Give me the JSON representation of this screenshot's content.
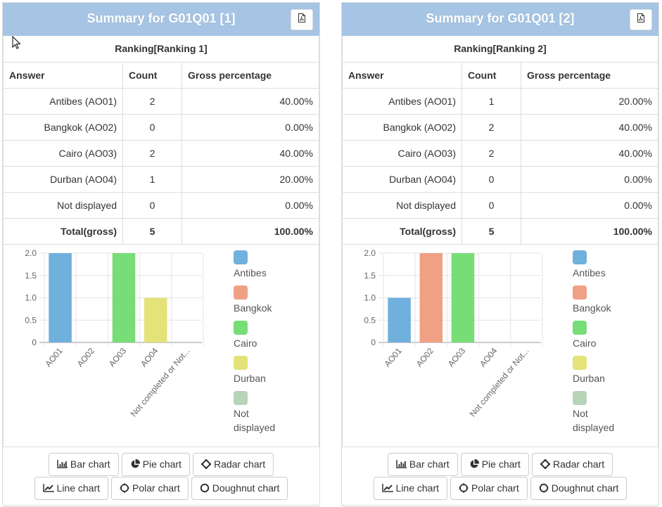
{
  "panels": [
    {
      "title": "Summary for G01Q01 [1]",
      "export_icon": "pdf-file-icon",
      "caption": "Ranking[Ranking 1]",
      "columns": [
        "Answer",
        "Count",
        "Gross percentage"
      ],
      "rows": [
        {
          "answer": "Antibes (AO01)",
          "count": "2",
          "pct": "40.00%"
        },
        {
          "answer": "Bangkok (AO02)",
          "count": "0",
          "pct": "0.00%"
        },
        {
          "answer": "Cairo (AO03)",
          "count": "2",
          "pct": "40.00%"
        },
        {
          "answer": "Durban (AO04)",
          "count": "1",
          "pct": "20.00%"
        },
        {
          "answer": "Not displayed",
          "count": "0",
          "pct": "0.00%"
        }
      ],
      "total": {
        "answer": "Total(gross)",
        "count": "5",
        "pct": "100.00%"
      },
      "legend": [
        "Antibes",
        "Bangkok",
        "Cairo",
        "Durban",
        "Not displayed"
      ],
      "buttons_row1": [
        {
          "label": "Bar chart",
          "icon": "bar-chart-icon"
        },
        {
          "label": "Pie chart",
          "icon": "pie-chart-icon"
        },
        {
          "label": "Radar chart",
          "icon": "radar-chart-icon"
        }
      ],
      "buttons_row2": [
        {
          "label": "Line chart",
          "icon": "line-chart-icon"
        },
        {
          "label": "Polar chart",
          "icon": "polar-chart-icon"
        },
        {
          "label": "Doughnut chart",
          "icon": "doughnut-chart-icon"
        }
      ]
    },
    {
      "title": "Summary for G01Q01 [2]",
      "export_icon": "pdf-file-icon",
      "caption": "Ranking[Ranking 2]",
      "columns": [
        "Answer",
        "Count",
        "Gross percentage"
      ],
      "rows": [
        {
          "answer": "Antibes (AO01)",
          "count": "1",
          "pct": "20.00%"
        },
        {
          "answer": "Bangkok (AO02)",
          "count": "2",
          "pct": "40.00%"
        },
        {
          "answer": "Cairo (AO03)",
          "count": "2",
          "pct": "40.00%"
        },
        {
          "answer": "Durban (AO04)",
          "count": "0",
          "pct": "0.00%"
        },
        {
          "answer": "Not displayed",
          "count": "0",
          "pct": "0.00%"
        }
      ],
      "total": {
        "answer": "Total(gross)",
        "count": "5",
        "pct": "100.00%"
      },
      "legend": [
        "Antibes",
        "Bangkok",
        "Cairo",
        "Durban",
        "Not displayed"
      ],
      "buttons_row1": [
        {
          "label": "Bar chart",
          "icon": "bar-chart-icon"
        },
        {
          "label": "Pie chart",
          "icon": "pie-chart-icon"
        },
        {
          "label": "Radar chart",
          "icon": "radar-chart-icon"
        }
      ],
      "buttons_row2": [
        {
          "label": "Line chart",
          "icon": "line-chart-icon"
        },
        {
          "label": "Polar chart",
          "icon": "polar-chart-icon"
        },
        {
          "label": "Doughnut chart",
          "icon": "doughnut-chart-icon"
        }
      ]
    }
  ],
  "colors": {
    "header_bg": "#a6c4e3",
    "series": [
      "#6fb0dd",
      "#f0a085",
      "#77dd77",
      "#e3e37a",
      "#b7d3b8"
    ]
  },
  "chart_data": [
    {
      "type": "bar",
      "title": "",
      "categories": [
        "AO01",
        "AO02",
        "AO03",
        "AO04",
        "Not completed or Not..."
      ],
      "values": [
        2,
        0,
        2,
        1,
        0
      ],
      "legend": [
        "Antibes",
        "Bangkok",
        "Cairo",
        "Durban",
        "Not displayed"
      ],
      "yticks": [
        "0",
        "0.5",
        "1.0",
        "1.5",
        "2.0"
      ],
      "ylim": [
        0,
        2
      ],
      "grid": true,
      "legend_position": "right",
      "xlabel": "",
      "ylabel": ""
    },
    {
      "type": "bar",
      "title": "",
      "categories": [
        "AO01",
        "AO02",
        "AO03",
        "AO04",
        "Not completed or Not..."
      ],
      "values": [
        1,
        2,
        2,
        0,
        0
      ],
      "legend": [
        "Antibes",
        "Bangkok",
        "Cairo",
        "Durban",
        "Not displayed"
      ],
      "yticks": [
        "0",
        "0.5",
        "1.0",
        "1.5",
        "2.0"
      ],
      "ylim": [
        0,
        2
      ],
      "grid": true,
      "legend_position": "right",
      "xlabel": "",
      "ylabel": ""
    }
  ]
}
